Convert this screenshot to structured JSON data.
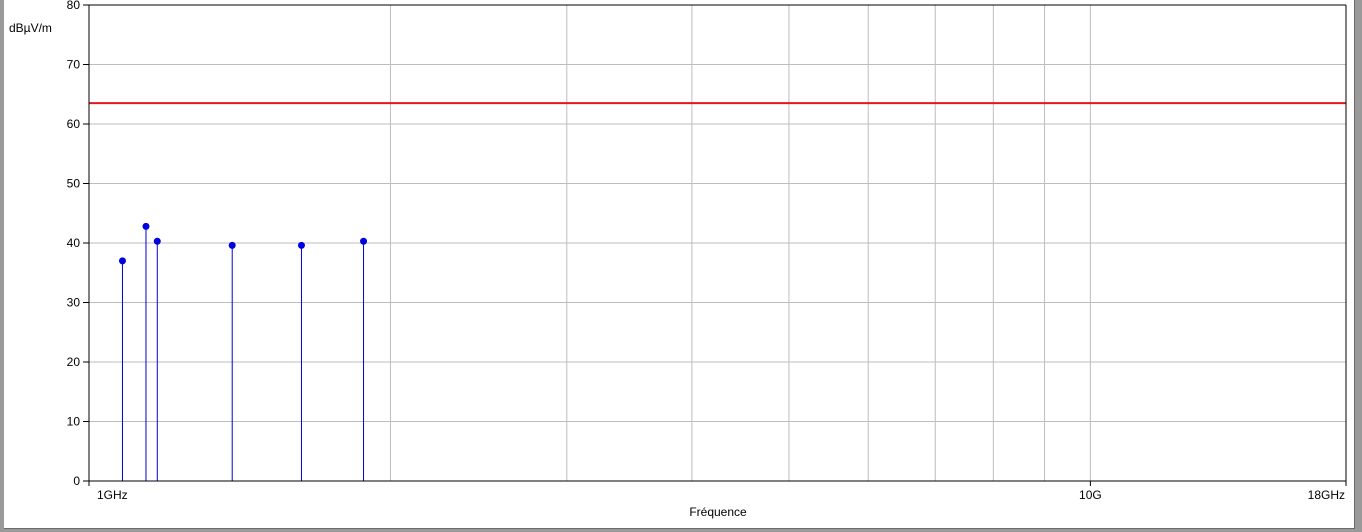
{
  "chart_data": {
    "type": "stem",
    "ylabel": "dBµV/m",
    "xlabel": "Fréquence",
    "x_scale": "log",
    "xlim_ghz": [
      1,
      18
    ],
    "ylim": [
      0,
      80
    ],
    "y_ticks": [
      0,
      10,
      20,
      30,
      40,
      50,
      60,
      70,
      80
    ],
    "x_tick_labels": [
      {
        "value_ghz": 1,
        "label": "1GHz"
      },
      {
        "value_ghz": 10,
        "label": "10G"
      },
      {
        "value_ghz": 18,
        "label": "18GHz"
      }
    ],
    "x_gridlines_ghz": [
      2,
      3,
      4,
      5,
      6,
      7,
      8,
      9,
      10
    ],
    "limit_line": {
      "value": 63.5,
      "color": "#e8141b"
    },
    "series": [
      {
        "color": "#0000dd",
        "points": [
          {
            "x_ghz": 1.08,
            "y": 37.0
          },
          {
            "x_ghz": 1.14,
            "y": 42.8
          },
          {
            "x_ghz": 1.17,
            "y": 40.3
          },
          {
            "x_ghz": 1.39,
            "y": 39.6
          },
          {
            "x_ghz": 1.63,
            "y": 39.6
          },
          {
            "x_ghz": 1.88,
            "y": 40.3
          }
        ]
      }
    ],
    "grid": true
  }
}
